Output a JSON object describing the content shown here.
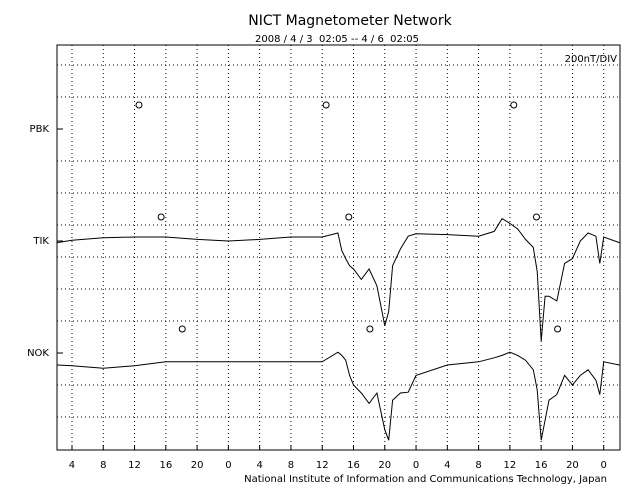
{
  "chart_data": {
    "type": "line",
    "title": "NICT Magnetometer Network",
    "subtitle": "2008 / 4 / 3  02:05 -- 4 / 6  02:05",
    "scale_label": "200nT/DIV",
    "footer": "National Institute of Information and Communications Technology, Japan",
    "xlim": [
      2.083,
      74.083
    ],
    "xticks": [
      4,
      8,
      12,
      16,
      20,
      {
        "value": 24,
        "label": "0"
      },
      {
        "value": 28,
        "label": "4"
      },
      {
        "value": 32,
        "label": "8"
      },
      {
        "value": 36,
        "label": "12"
      },
      {
        "value": 40,
        "label": "16"
      },
      {
        "value": 44,
        "label": "20"
      },
      {
        "value": 48,
        "label": "0"
      },
      {
        "value": 52,
        "label": "4"
      },
      {
        "value": 56,
        "label": "8"
      },
      {
        "value": 60,
        "label": "12"
      },
      {
        "value": 64,
        "label": "16"
      },
      {
        "value": 68,
        "label": "20"
      },
      {
        "value": 72,
        "label": "0"
      }
    ],
    "x": [
      2.1,
      4,
      8,
      12,
      16,
      20,
      24,
      28,
      32,
      36,
      38,
      38.5,
      39,
      39.5,
      40,
      41,
      42,
      43,
      44,
      44.5,
      45,
      46,
      47,
      48,
      52,
      56,
      58,
      59,
      60,
      61,
      62,
      63,
      63.5,
      64,
      64.5,
      65,
      66,
      67,
      68,
      69,
      70,
      71,
      71.5,
      72,
      74
    ],
    "series": [
      {
        "name": "PBK",
        "color": "#000000",
        "markers": [
          12.57,
          36.5,
          60.5
        ],
        "values": [
          null,
          null,
          null,
          null,
          null,
          null,
          null,
          null,
          null,
          null,
          null,
          null,
          null,
          null,
          null,
          null,
          null,
          null,
          null,
          null,
          null,
          null,
          null,
          null,
          null,
          null,
          null,
          null,
          null,
          null,
          null,
          null,
          null,
          null,
          null,
          null,
          null,
          null,
          null,
          null,
          null,
          null,
          null,
          null,
          null
        ]
      },
      {
        "name": "TIK",
        "color": "#000000",
        "markers": [
          15.4,
          39.4,
          63.4
        ],
        "values": [
          -10,
          5,
          20,
          25,
          25,
          10,
          0,
          10,
          25,
          25,
          50,
          -60,
          -110,
          -155,
          -175,
          -240,
          -175,
          -280,
          -530,
          -440,
          -155,
          -50,
          30,
          45,
          40,
          30,
          60,
          140,
          110,
          75,
          10,
          -40,
          -190,
          -625,
          -345,
          -345,
          -375,
          -140,
          -110,
          0,
          50,
          30,
          -140,
          25,
          -10
        ]
      },
      {
        "name": "NOK",
        "color": "#000000",
        "markers": [
          18.1,
          42.1,
          66.1
        ],
        "values": [
          -75,
          -80,
          -95,
          -80,
          -55,
          -55,
          -55,
          -55,
          -55,
          -55,
          5,
          -15,
          -45,
          -140,
          -200,
          -250,
          -315,
          -250,
          -480,
          -545,
          -295,
          -250,
          -245,
          -140,
          -75,
          -55,
          -30,
          -15,
          5,
          -15,
          -45,
          -105,
          -230,
          -545,
          -420,
          -295,
          -260,
          -140,
          -200,
          -140,
          -105,
          -170,
          -260,
          -55,
          -75
        ]
      }
    ]
  }
}
